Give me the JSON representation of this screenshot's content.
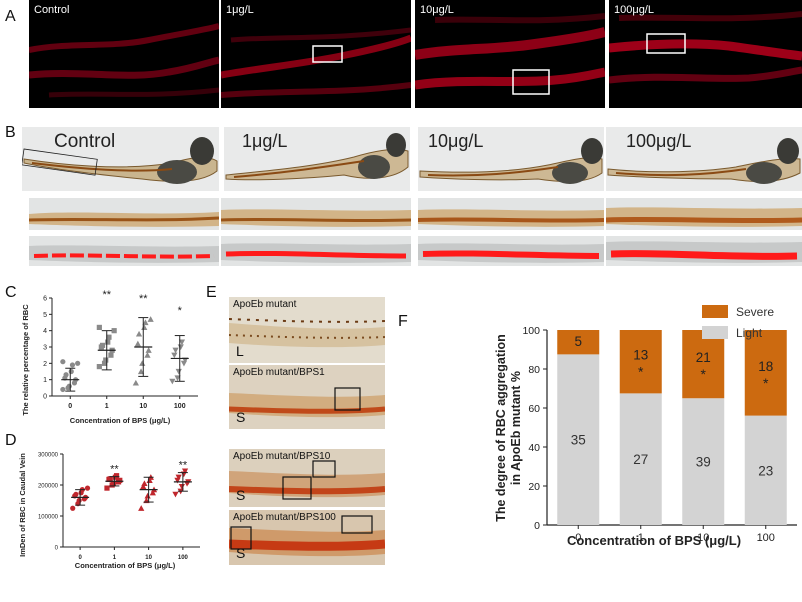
{
  "panels": {
    "A": "A",
    "B": "B",
    "C": "C",
    "D": "D",
    "E": "E",
    "F": "F"
  },
  "panel_a": {
    "labels": [
      "Control",
      "1μg/L",
      "10μg/L",
      "100μg/L"
    ]
  },
  "panel_b": {
    "labels": [
      "Control",
      "1μg/L",
      "10μg/L",
      "100μg/L"
    ]
  },
  "panel_e": {
    "labels": [
      "ApoEb mutant",
      "ApoEb mutant/BPS1",
      "ApoEb mutant/BPS10",
      "ApoEb mutant/BPS100"
    ],
    "grades": [
      "L",
      "S",
      "S",
      "S"
    ]
  },
  "colors": {
    "severe": "#cc6a10",
    "light": "#d3d3d3",
    "red_marker": "#c0272d",
    "fluorescence": "#c4001e"
  },
  "chart_data": [
    {
      "id": "C",
      "type": "scatter",
      "ylabel": "The relative percentage of RBC",
      "xlabel": "Concentration of BPS (μg/L)",
      "categories": [
        "0",
        "1",
        "10",
        "100"
      ],
      "ylim": [
        0,
        6
      ],
      "yticks": [
        "0",
        "1",
        "2",
        "3",
        "4",
        "5",
        "6"
      ],
      "markers": [
        "circle",
        "square",
        "triangle",
        "inverted-triangle"
      ],
      "means": [
        1.0,
        2.8,
        3.0,
        2.3
      ],
      "sd": [
        0.7,
        1.2,
        1.8,
        1.4
      ],
      "significance": [
        "",
        "**",
        "**",
        "*"
      ],
      "points": [
        [
          0.4,
          0.5,
          0.6,
          0.8,
          1.0,
          1.1,
          1.3,
          1.5,
          1.9,
          2.0,
          2.1
        ],
        [
          1.8,
          2.0,
          2.2,
          2.5,
          2.8,
          3.0,
          3.1,
          3.3,
          3.6,
          4.0,
          4.2
        ],
        [
          0.8,
          1.5,
          2.0,
          2.5,
          2.8,
          3.2,
          3.8,
          4.2,
          4.5,
          4.7
        ],
        [
          0.9,
          1.1,
          1.5,
          2.0,
          2.2,
          2.5,
          2.8,
          3.0,
          3.3
        ]
      ]
    },
    {
      "id": "D",
      "type": "scatter",
      "ylabel": "ImDen of RBC in Caudal Vein",
      "xlabel": "Concentration of BPS (μg/L)",
      "categories": [
        "0",
        "1",
        "10",
        "100"
      ],
      "ylim": [
        0,
        300000
      ],
      "yticks": [
        "0",
        "100000",
        "200000",
        "300000"
      ],
      "markers": [
        "circle",
        "square",
        "triangle",
        "inverted-triangle"
      ],
      "means": [
        160000,
        212000,
        185000,
        210000
      ],
      "sd": [
        25000,
        15000,
        40000,
        30000
      ],
      "significance": [
        "",
        "**",
        "",
        "**"
      ],
      "points": [
        [
          125000,
          140000,
          150000,
          155000,
          160000,
          165000,
          170000,
          175000,
          185000,
          190000
        ],
        [
          190000,
          200000,
          205000,
          210000,
          215000,
          218000,
          220000,
          225000,
          230000
        ],
        [
          125000,
          150000,
          165000,
          175000,
          185000,
          195000,
          205000,
          215000,
          225000
        ],
        [
          170000,
          180000,
          195000,
          205000,
          210000,
          215000,
          225000,
          235000,
          245000
        ]
      ]
    },
    {
      "id": "F",
      "type": "bar",
      "stacked": true,
      "ylabel_lines": [
        "The degree of RBC aggregation",
        "in ApoEb mutant %"
      ],
      "xlabel": "Concentration of BPS (μg/L)",
      "categories": [
        "0",
        "1",
        "10",
        "100"
      ],
      "ylim": [
        0,
        100
      ],
      "yticks": [
        "0",
        "20",
        "40",
        "60",
        "80",
        "100"
      ],
      "series": [
        {
          "name": "Light",
          "color": "#d3d3d3",
          "counts": [
            "35",
            "27",
            "39",
            "23"
          ],
          "percent": [
            87.5,
            67.5,
            65.0,
            56.1
          ]
        },
        {
          "name": "Severe",
          "color": "#cc6a10",
          "counts": [
            "5",
            "13",
            "21",
            "18"
          ],
          "percent": [
            12.5,
            32.5,
            35.0,
            43.9
          ]
        }
      ],
      "significance": [
        "",
        "*",
        "*",
        "*"
      ],
      "legend": [
        "Severe",
        "Light"
      ],
      "legend_position": "top-right"
    }
  ]
}
